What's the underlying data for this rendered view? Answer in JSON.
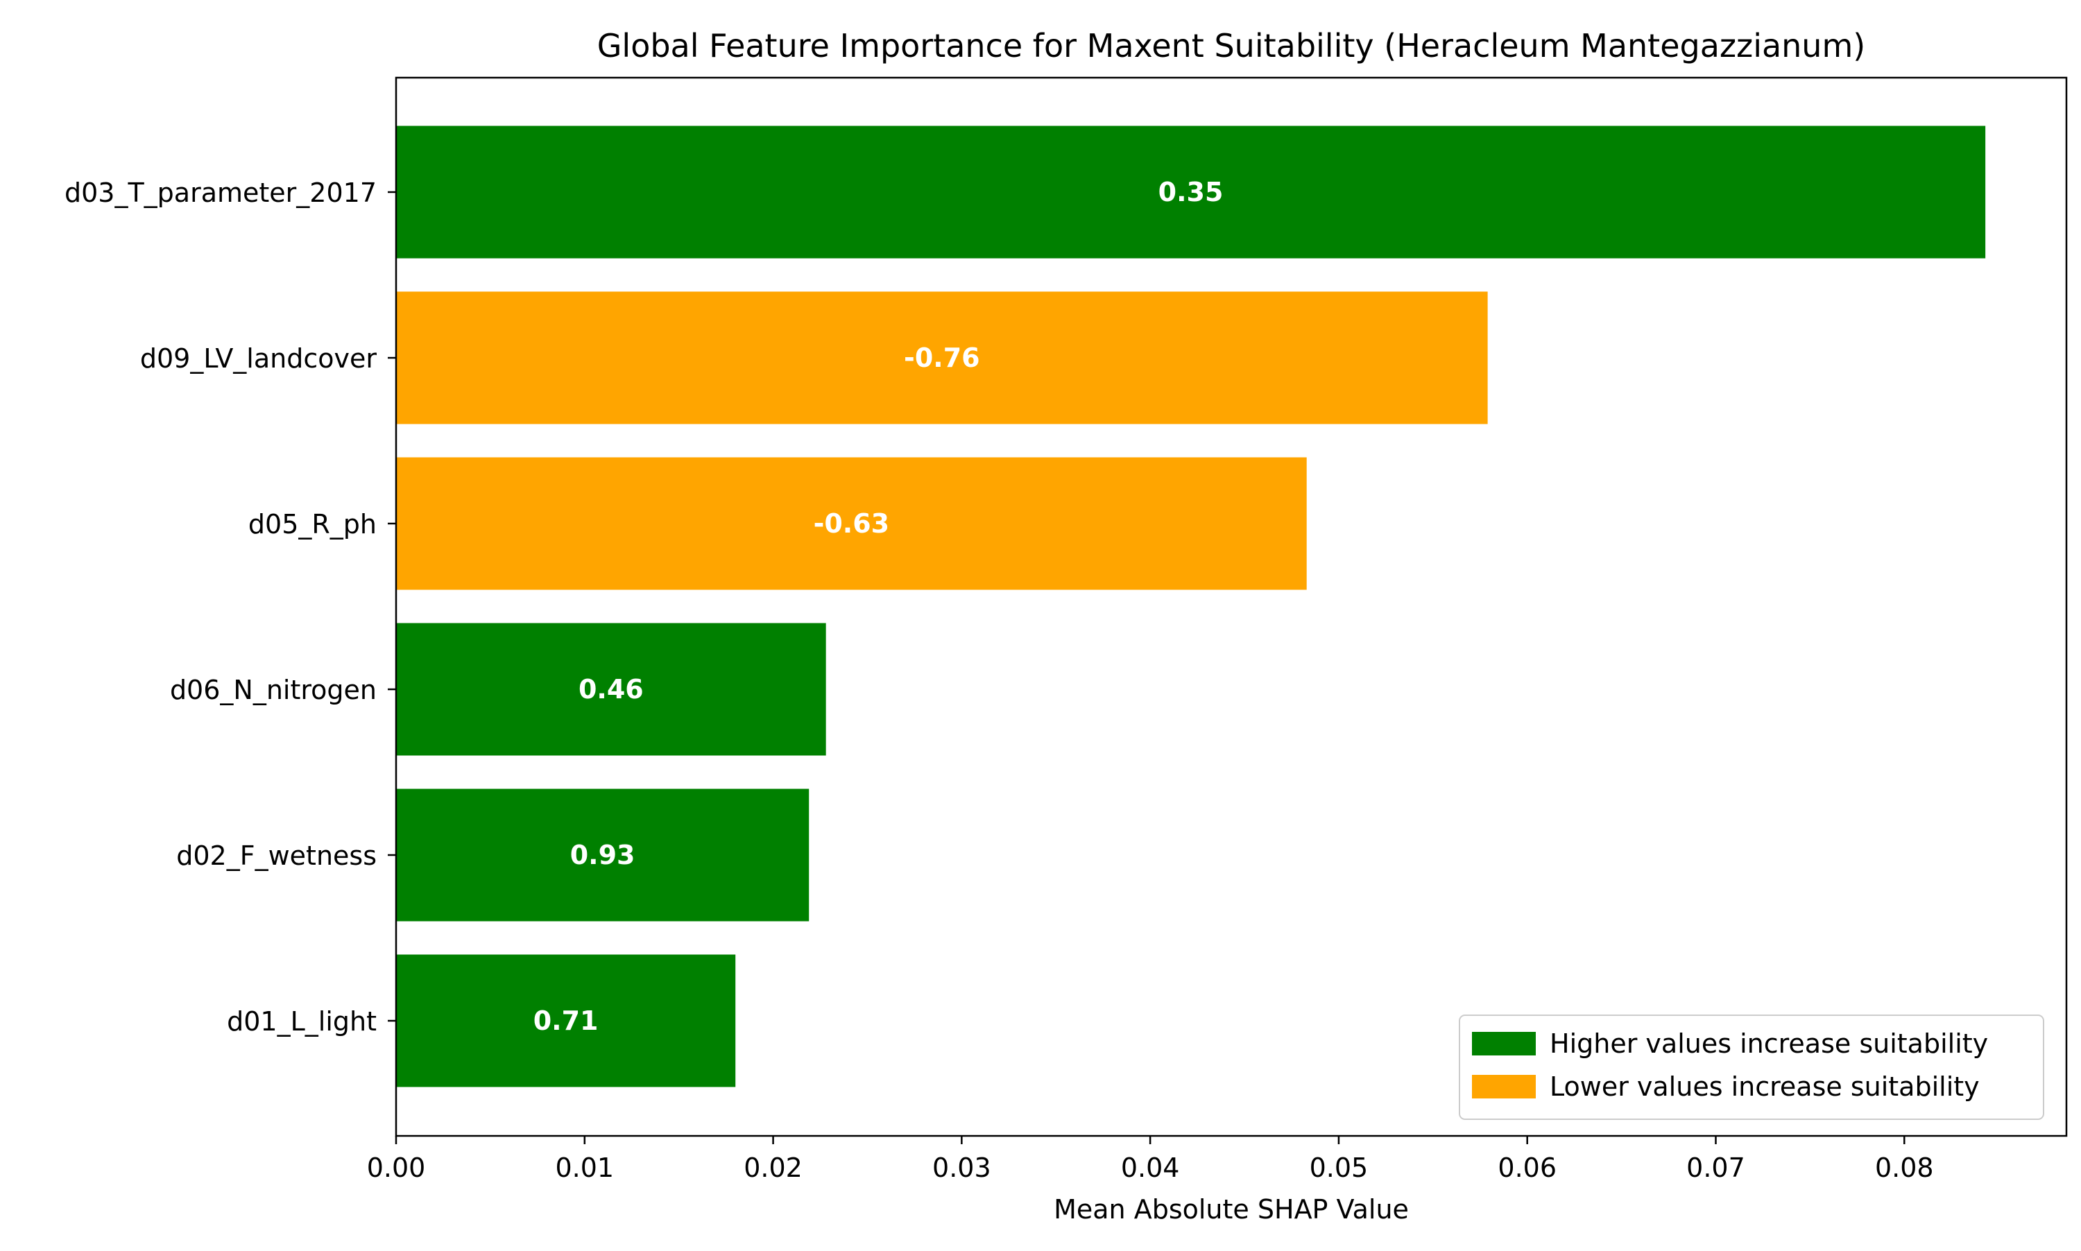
{
  "chart_data": {
    "type": "bar",
    "orientation": "horizontal",
    "title": "Global Feature Importance for Maxent Suitability (Heracleum Mantegazzianum)",
    "xlabel": "Mean Absolute SHAP Value",
    "ylabel": "",
    "xlim": [
      0,
      0.0886
    ],
    "xticks": [
      0.0,
      0.01,
      0.02,
      0.03,
      0.04,
      0.05,
      0.06,
      0.07,
      0.08
    ],
    "xtick_labels": [
      "0.00",
      "0.01",
      "0.02",
      "0.03",
      "0.04",
      "0.05",
      "0.06",
      "0.07",
      "0.08"
    ],
    "grid": false,
    "legend_position": "lower-right",
    "categories": [
      "d03_T_parameter_2017",
      "d09_LV_landcover",
      "d05_R_ph",
      "d06_N_nitrogen",
      "d02_F_wetness",
      "d01_L_light"
    ],
    "values": [
      0.0843,
      0.0579,
      0.0483,
      0.0228,
      0.0219,
      0.018
    ],
    "bar_labels": [
      "0.35",
      "-0.76",
      "-0.63",
      "0.46",
      "0.93",
      "0.71"
    ],
    "bar_groups": [
      "higher",
      "lower",
      "lower",
      "higher",
      "higher",
      "higher"
    ],
    "legend": [
      {
        "key": "higher",
        "label": "Higher values increase suitability",
        "color": "#008000"
      },
      {
        "key": "lower",
        "label": "Lower values increase suitability",
        "color": "#FFA500"
      }
    ]
  }
}
